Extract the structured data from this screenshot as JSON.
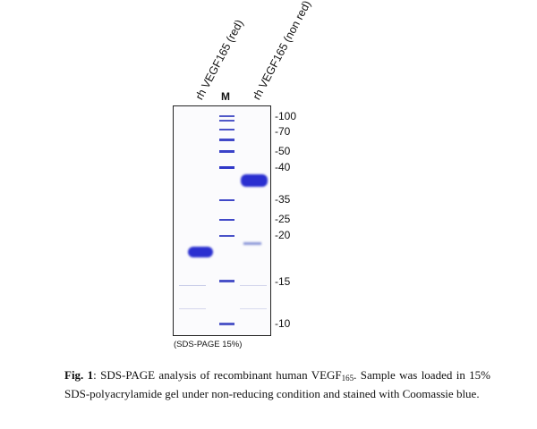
{
  "lanes": {
    "lane1": "rh VEGF165 (red)",
    "marker": "M",
    "lane3": "rh VEGF165 (non red)"
  },
  "marker_weights": [
    "-100",
    "-70",
    "-50",
    "-40",
    "-35",
    "-25",
    "-20",
    "-15",
    "-10"
  ],
  "gel_note": "(SDS-PAGE 15%)",
  "caption": {
    "label": "Fig. 1",
    "text_before_sub": ": SDS-PAGE analysis of recombinant human VEGF",
    "subscript": "165",
    "text_after_sub": ". Sample was loaded in 15% SDS-polyacrylamide gel under non-reducing condition and stained with Coomassie blue."
  },
  "colors": {
    "band": "#2a2fd0",
    "band_faint": "#8a96d8",
    "border": "#222222"
  }
}
